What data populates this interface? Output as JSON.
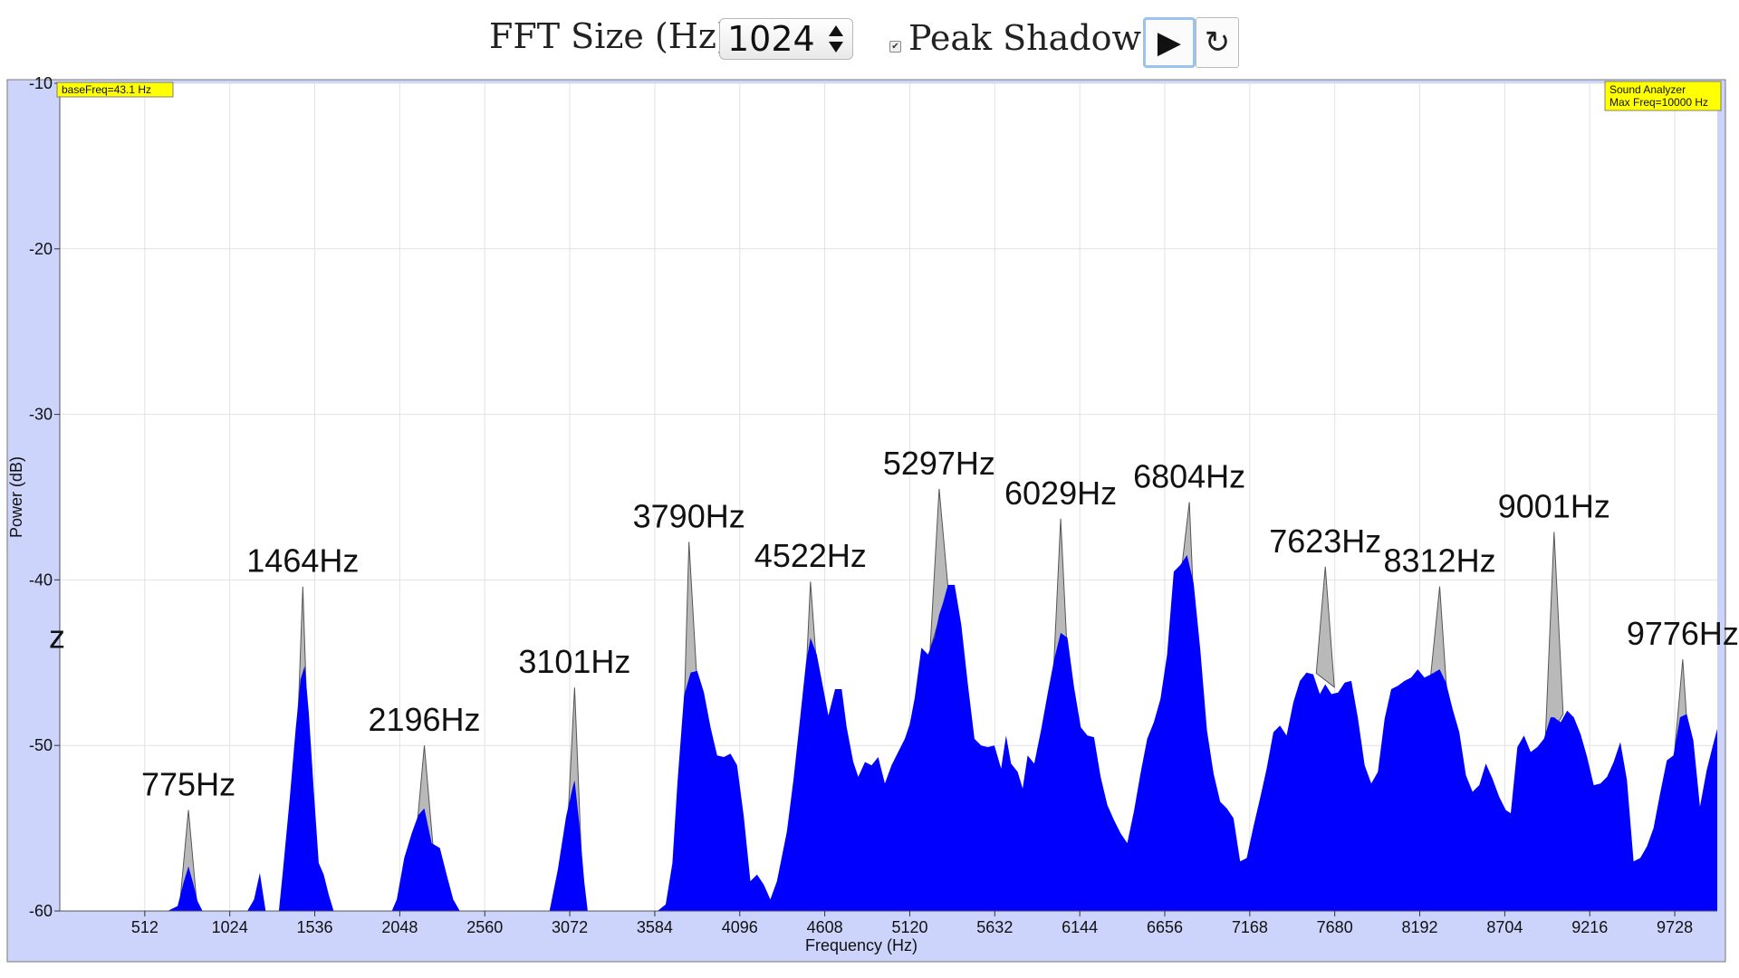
{
  "controls": {
    "fft_label": "FFT Size (Hz):",
    "fft_value": "1024",
    "peak_shadow_checked": true,
    "peak_shadow_label": "Peak Shadow",
    "play_icon": "play-icon",
    "reset_icon": "reset-icon"
  },
  "chart_data": {
    "type": "area",
    "xlabel": "Frequency (Hz)",
    "ylabel": "Power (dB)",
    "xlim": [
      0,
      9984
    ],
    "ylim": [
      -60,
      -10
    ],
    "x_ticks": [
      512,
      1024,
      1536,
      2048,
      2560,
      3072,
      3584,
      4096,
      4608,
      5120,
      5632,
      6144,
      6656,
      7168,
      7680,
      8192,
      8704,
      9216,
      9728
    ],
    "y_ticks": [
      -10,
      -20,
      -30,
      -40,
      -50,
      -60
    ],
    "grid": true,
    "info_left": "baseFreq=43.1 Hz",
    "info_right": [
      "Sound Analyzer",
      "Max Freq=10000 Hz"
    ],
    "peak_labels": [
      {
        "label": "775Hz",
        "x": 775,
        "y": -53.9
      },
      {
        "label": "1464Hz",
        "x": 1464,
        "y": -40.4
      },
      {
        "label": "2196Hz",
        "x": 2196,
        "y": -50.0
      },
      {
        "label": "3101Hz",
        "x": 3101,
        "y": -46.5
      },
      {
        "label": "3790Hz",
        "x": 3790,
        "y": -37.7
      },
      {
        "label": "4522Hz",
        "x": 4522,
        "y": -40.1
      },
      {
        "label": "5297Hz",
        "x": 5297,
        "y": -34.5
      },
      {
        "label": "6029Hz",
        "x": 6029,
        "y": -36.3
      },
      {
        "label": "6804Hz",
        "x": 6804,
        "y": -35.3
      },
      {
        "label": "7623Hz",
        "x": 7623,
        "y": -39.2
      },
      {
        "label": "8312Hz",
        "x": 8312,
        "y": -40.4
      },
      {
        "label": "9001Hz",
        "x": 9001,
        "y": -37.1
      },
      {
        "label": "9776Hz",
        "x": 9776,
        "y": -44.8
      },
      {
        "label": "z",
        "x": 0,
        "y": -43.4
      }
    ],
    "spectrum": [
      [
        400,
        -60
      ],
      [
        650,
        -60
      ],
      [
        710,
        -59.7
      ],
      [
        745,
        -58.3
      ],
      [
        775,
        -57.3
      ],
      [
        805,
        -58.4
      ],
      [
        830,
        -59.4
      ],
      [
        860,
        -60
      ],
      [
        1130,
        -60
      ],
      [
        1170,
        -59.3
      ],
      [
        1205,
        -57.7
      ],
      [
        1240,
        -60
      ],
      [
        1320,
        -60
      ],
      [
        1345,
        -57.5
      ],
      [
        1385,
        -53.2
      ],
      [
        1420,
        -49.1
      ],
      [
        1450,
        -46.0
      ],
      [
        1475,
        -45.2
      ],
      [
        1500,
        -48.0
      ],
      [
        1530,
        -52.7
      ],
      [
        1560,
        -57.1
      ],
      [
        1590,
        -57.8
      ],
      [
        1620,
        -59
      ],
      [
        1650,
        -60
      ],
      [
        2000,
        -60
      ],
      [
        2030,
        -59.3
      ],
      [
        2075,
        -56.8
      ],
      [
        2120,
        -55.3
      ],
      [
        2160,
        -54.2
      ],
      [
        2196,
        -53.8
      ],
      [
        2240,
        -55.9
      ],
      [
        2290,
        -56.2
      ],
      [
        2330,
        -57.8
      ],
      [
        2370,
        -59.3
      ],
      [
        2410,
        -60
      ],
      [
        2950,
        -60
      ],
      [
        3000,
        -57.5
      ],
      [
        3050,
        -54.3
      ],
      [
        3090,
        -52.5
      ],
      [
        3101,
        -52.1
      ],
      [
        3130,
        -54.8
      ],
      [
        3160,
        -58.3
      ],
      [
        3180,
        -60
      ],
      [
        3600,
        -60
      ],
      [
        3650,
        -59.6
      ],
      [
        3690,
        -57.1
      ],
      [
        3720,
        -52.3
      ],
      [
        3760,
        -47.0
      ],
      [
        3800,
        -45.6
      ],
      [
        3840,
        -45.5
      ],
      [
        3880,
        -46.8
      ],
      [
        3920,
        -48.9
      ],
      [
        3960,
        -50.6
      ],
      [
        4000,
        -50.7
      ],
      [
        4040,
        -50.5
      ],
      [
        4080,
        -51.2
      ],
      [
        4120,
        -54.3
      ],
      [
        4160,
        -58.2
      ],
      [
        4200,
        -57.8
      ],
      [
        4240,
        -58.4
      ],
      [
        4280,
        -59.3
      ],
      [
        4320,
        -58.2
      ],
      [
        4380,
        -55.2
      ],
      [
        4420,
        -52.0
      ],
      [
        4460,
        -48.3
      ],
      [
        4495,
        -45.0
      ],
      [
        4522,
        -43.5
      ],
      [
        4560,
        -44.5
      ],
      [
        4600,
        -46.6
      ],
      [
        4630,
        -48.2
      ],
      [
        4670,
        -46.6
      ],
      [
        4710,
        -46.6
      ],
      [
        4740,
        -48.9
      ],
      [
        4780,
        -51.0
      ],
      [
        4810,
        -51.9
      ],
      [
        4850,
        -51.0
      ],
      [
        4890,
        -51.2
      ],
      [
        4930,
        -50.7
      ],
      [
        4970,
        -52.3
      ],
      [
        5010,
        -51.2
      ],
      [
        5050,
        -50.4
      ],
      [
        5090,
        -49.6
      ],
      [
        5120,
        -48.7
      ],
      [
        5150,
        -47.1
      ],
      [
        5190,
        -44.1
      ],
      [
        5230,
        -44.5
      ],
      [
        5270,
        -43.4
      ],
      [
        5297,
        -42.1
      ],
      [
        5320,
        -41.4
      ],
      [
        5350,
        -40.3
      ],
      [
        5390,
        -40.3
      ],
      [
        5430,
        -42.7
      ],
      [
        5470,
        -46.3
      ],
      [
        5510,
        -49.6
      ],
      [
        5550,
        -50.0
      ],
      [
        5590,
        -50.1
      ],
      [
        5630,
        -50.0
      ],
      [
        5670,
        -51.4
      ],
      [
        5700,
        -49.4
      ],
      [
        5730,
        -51.1
      ],
      [
        5770,
        -51.6
      ],
      [
        5800,
        -52.6
      ],
      [
        5830,
        -50.6
      ],
      [
        5870,
        -51.1
      ],
      [
        5910,
        -49.1
      ],
      [
        5950,
        -46.9
      ],
      [
        5990,
        -44.8
      ],
      [
        6029,
        -43.2
      ],
      [
        6070,
        -43.5
      ],
      [
        6110,
        -46.5
      ],
      [
        6150,
        -48.9
      ],
      [
        6190,
        -49.4
      ],
      [
        6230,
        -49.5
      ],
      [
        6270,
        -51.9
      ],
      [
        6310,
        -53.6
      ],
      [
        6350,
        -54.5
      ],
      [
        6390,
        -55.3
      ],
      [
        6430,
        -55.9
      ],
      [
        6470,
        -54.0
      ],
      [
        6510,
        -51.7
      ],
      [
        6550,
        -49.6
      ],
      [
        6590,
        -48.6
      ],
      [
        6630,
        -47.2
      ],
      [
        6670,
        -44.5
      ],
      [
        6710,
        -39.5
      ],
      [
        6750,
        -39.1
      ],
      [
        6790,
        -38.5
      ],
      [
        6830,
        -40.2
      ],
      [
        6870,
        -44.2
      ],
      [
        6910,
        -49.1
      ],
      [
        6950,
        -51.7
      ],
      [
        6990,
        -53.4
      ],
      [
        7030,
        -53.8
      ],
      [
        7070,
        -54.4
      ],
      [
        7110,
        -57.0
      ],
      [
        7150,
        -56.8
      ],
      [
        7190,
        -54.9
      ],
      [
        7230,
        -53.2
      ],
      [
        7270,
        -51.4
      ],
      [
        7310,
        -49.2
      ],
      [
        7350,
        -48.8
      ],
      [
        7390,
        -49.4
      ],
      [
        7430,
        -47.4
      ],
      [
        7470,
        -46.1
      ],
      [
        7510,
        -45.6
      ],
      [
        7550,
        -45.7
      ],
      [
        7590,
        -46.9
      ],
      [
        7623,
        -46.3
      ],
      [
        7660,
        -46.9
      ],
      [
        7700,
        -46.8
      ],
      [
        7740,
        -46.2
      ],
      [
        7780,
        -46.1
      ],
      [
        7820,
        -48.4
      ],
      [
        7860,
        -51.2
      ],
      [
        7900,
        -52.3
      ],
      [
        7940,
        -51.6
      ],
      [
        7980,
        -48.4
      ],
      [
        8020,
        -46.6
      ],
      [
        8060,
        -46.4
      ],
      [
        8100,
        -46.1
      ],
      [
        8140,
        -45.9
      ],
      [
        8180,
        -45.4
      ],
      [
        8220,
        -45.9
      ],
      [
        8260,
        -45.7
      ],
      [
        8312,
        -45.4
      ],
      [
        8350,
        -46.2
      ],
      [
        8390,
        -47.8
      ],
      [
        8430,
        -49.2
      ],
      [
        8470,
        -51.8
      ],
      [
        8510,
        -52.8
      ],
      [
        8550,
        -52.4
      ],
      [
        8590,
        -51.1
      ],
      [
        8630,
        -52.0
      ],
      [
        8670,
        -53.1
      ],
      [
        8710,
        -53.9
      ],
      [
        8740,
        -54.1
      ],
      [
        8780,
        -50.1
      ],
      [
        8820,
        -49.4
      ],
      [
        8860,
        -50.4
      ],
      [
        8900,
        -50.1
      ],
      [
        8940,
        -49.6
      ],
      [
        8980,
        -48.3
      ],
      [
        9001,
        -48.3
      ],
      [
        9040,
        -48.6
      ],
      [
        9080,
        -47.9
      ],
      [
        9120,
        -48.3
      ],
      [
        9160,
        -49.3
      ],
      [
        9200,
        -50.7
      ],
      [
        9240,
        -52.4
      ],
      [
        9280,
        -52.3
      ],
      [
        9320,
        -51.9
      ],
      [
        9360,
        -51.0
      ],
      [
        9400,
        -49.8
      ],
      [
        9440,
        -52.1
      ],
      [
        9480,
        -57.0
      ],
      [
        9520,
        -56.8
      ],
      [
        9560,
        -56.1
      ],
      [
        9600,
        -55.0
      ],
      [
        9640,
        -52.9
      ],
      [
        9680,
        -50.9
      ],
      [
        9720,
        -50.6
      ],
      [
        9760,
        -48.3
      ],
      [
        9800,
        -48.1
      ],
      [
        9840,
        -49.7
      ],
      [
        9880,
        -53.7
      ],
      [
        9920,
        -51.5
      ],
      [
        9960,
        -49.9
      ],
      [
        9984,
        -49.0
      ]
    ]
  }
}
